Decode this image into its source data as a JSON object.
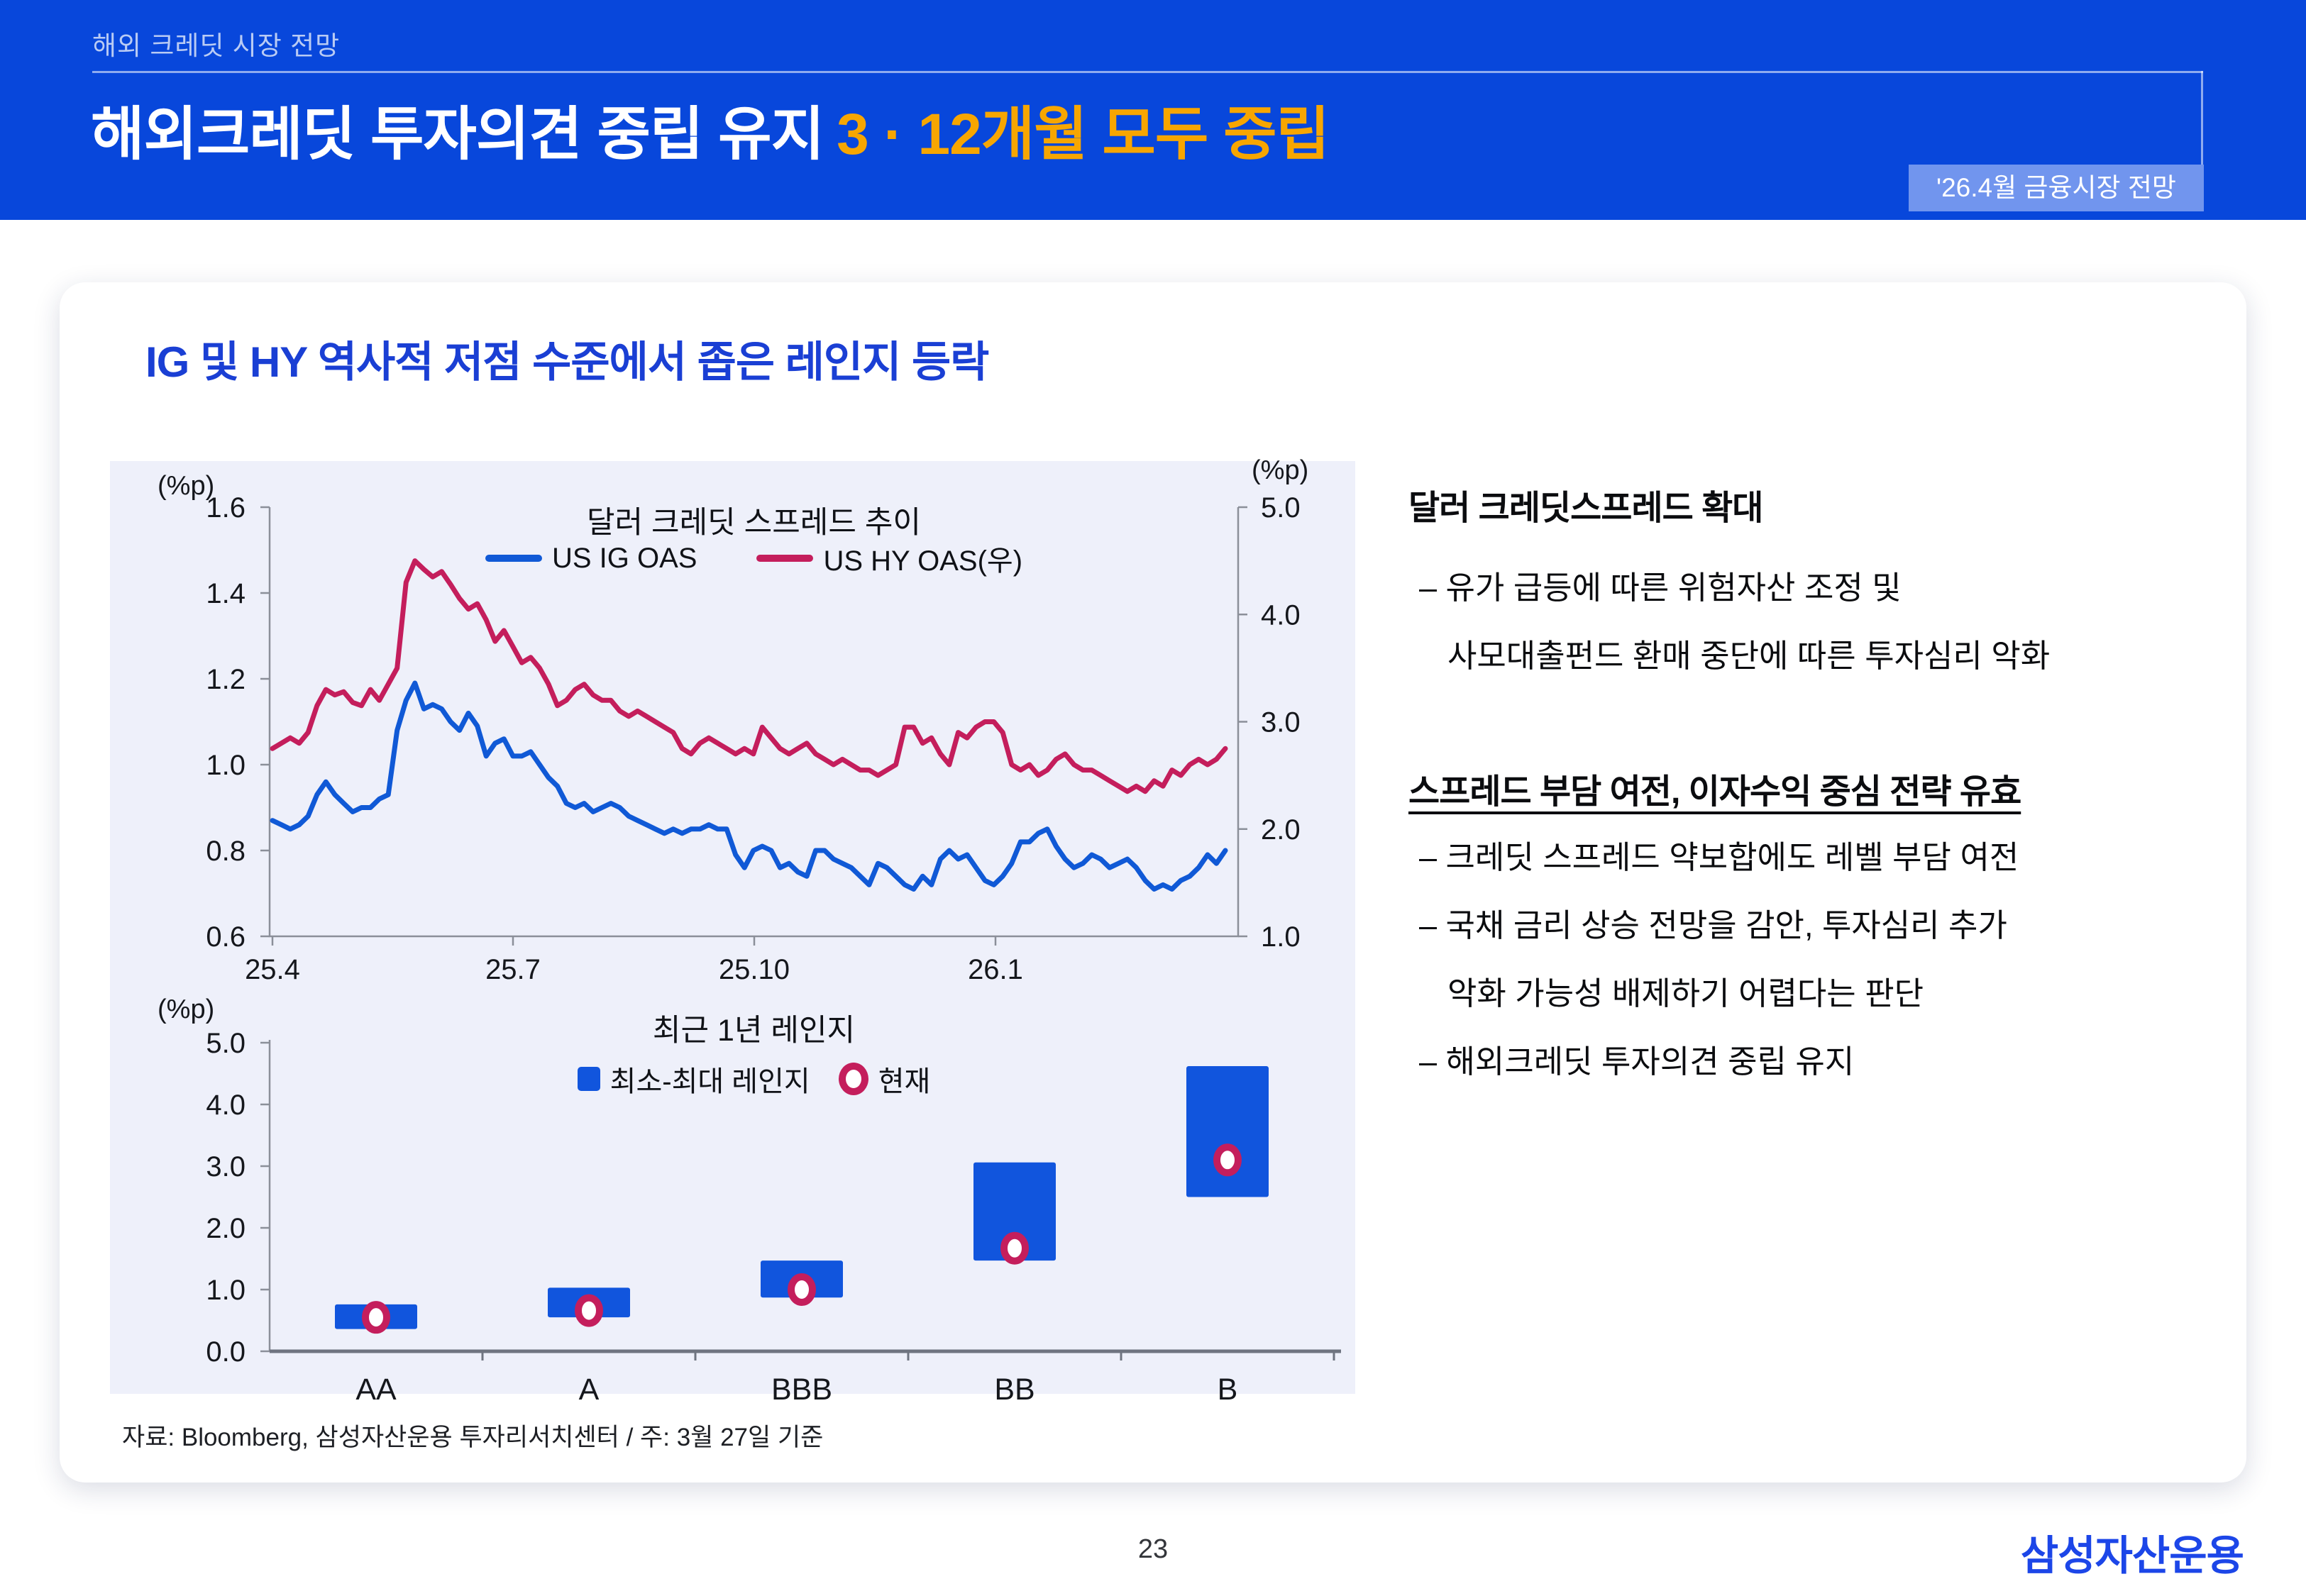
{
  "header": {
    "eyebrow": "해외 크레딧 시장 전망",
    "title_main": "해외크레딧 투자의견 중립 유지",
    "title_accent": "3 · 12개월 모두 중립",
    "badge": "'26.4월 금융시장 전망",
    "bg_color": "#0847DB",
    "accent_color": "#F7A600",
    "badge_bg": "#7195EE"
  },
  "card": {
    "title": "IG 및 HY 역사적 저점 수준에서 좁은 레인지 등락",
    "title_color": "#1A3FD4"
  },
  "right_column": {
    "block1": {
      "heading": "달러 크레딧스프레드 확대",
      "bullet1": "– 유가 급등에 따른 위험자산 조정 및",
      "bullet2": "사모대출펀드 환매 중단에 따른 투자심리 악화"
    },
    "block2": {
      "heading": "스프레드 부담 여전, 이자수익 중심 전략 유효",
      "bullet1": "– 크레딧 스프레드 약보합에도 레벨 부담 여전",
      "bullet2": "– 국채 금리 상승 전망을 감안, 투자심리 추가",
      "bullet3": "악화 가능성 배제하기 어렵다는 판단",
      "bullet4": "– 해외크레딧 투자의견 중립 유지"
    }
  },
  "footnote": "자료: Bloomberg, 삼성자산운용 투자리서치센터 / 주: 3월 27일 기준",
  "page_number": "23",
  "logo": "삼성자산운용",
  "logo_color": "#1C46E8",
  "chart_data": [
    {
      "type": "line",
      "title": "달러 크레딧 스프레드 추이",
      "unit_left": "(%p)",
      "unit_right": "(%p)",
      "x_ticks": [
        "25.4",
        "25.7",
        "25.10",
        "26.1"
      ],
      "left_axis": {
        "min": 0.6,
        "max": 1.6,
        "ticks": [
          "1.6",
          "1.4",
          "1.2",
          "1.0",
          "0.8",
          "0.6"
        ]
      },
      "right_axis": {
        "min": 1.0,
        "max": 5.0,
        "ticks": [
          "5.0",
          "4.0",
          "3.0",
          "2.0",
          "1.0"
        ]
      },
      "legend_position": "top",
      "grid": false,
      "series": [
        {
          "name": "US IG OAS",
          "axis": "left",
          "color": "#1059D6",
          "values": [
            0.87,
            0.86,
            0.85,
            0.86,
            0.88,
            0.93,
            0.96,
            0.93,
            0.91,
            0.89,
            0.9,
            0.9,
            0.92,
            0.93,
            1.08,
            1.15,
            1.19,
            1.13,
            1.14,
            1.13,
            1.1,
            1.08,
            1.12,
            1.09,
            1.02,
            1.05,
            1.06,
            1.02,
            1.02,
            1.03,
            1.0,
            0.97,
            0.95,
            0.91,
            0.9,
            0.91,
            0.89,
            0.9,
            0.91,
            0.9,
            0.88,
            0.87,
            0.86,
            0.85,
            0.84,
            0.85,
            0.84,
            0.85,
            0.85,
            0.86,
            0.85,
            0.85,
            0.79,
            0.76,
            0.8,
            0.81,
            0.8,
            0.76,
            0.77,
            0.75,
            0.74,
            0.8,
            0.8,
            0.78,
            0.77,
            0.76,
            0.74,
            0.72,
            0.77,
            0.76,
            0.74,
            0.72,
            0.71,
            0.74,
            0.72,
            0.78,
            0.8,
            0.78,
            0.79,
            0.76,
            0.73,
            0.72,
            0.74,
            0.77,
            0.82,
            0.82,
            0.84,
            0.85,
            0.81,
            0.78,
            0.76,
            0.77,
            0.79,
            0.78,
            0.76,
            0.77,
            0.78,
            0.76,
            0.73,
            0.71,
            0.72,
            0.71,
            0.73,
            0.74,
            0.76,
            0.79,
            0.77,
            0.8
          ]
        },
        {
          "name": "US HY OAS(우)",
          "axis": "right",
          "color": "#C41E5C",
          "values": [
            2.75,
            2.8,
            2.85,
            2.8,
            2.9,
            3.15,
            3.3,
            3.25,
            3.28,
            3.18,
            3.15,
            3.3,
            3.2,
            3.35,
            3.5,
            4.3,
            4.5,
            4.42,
            4.35,
            4.4,
            4.28,
            4.15,
            4.05,
            4.1,
            3.95,
            3.75,
            3.85,
            3.7,
            3.55,
            3.6,
            3.5,
            3.35,
            3.15,
            3.2,
            3.3,
            3.35,
            3.25,
            3.2,
            3.2,
            3.1,
            3.05,
            3.1,
            3.05,
            3.0,
            2.95,
            2.9,
            2.75,
            2.7,
            2.8,
            2.85,
            2.8,
            2.75,
            2.7,
            2.75,
            2.7,
            2.95,
            2.85,
            2.75,
            2.7,
            2.75,
            2.8,
            2.7,
            2.65,
            2.6,
            2.65,
            2.6,
            2.55,
            2.55,
            2.5,
            2.55,
            2.6,
            2.95,
            2.95,
            2.8,
            2.85,
            2.7,
            2.6,
            2.9,
            2.85,
            2.95,
            3.0,
            3.0,
            2.9,
            2.6,
            2.55,
            2.6,
            2.5,
            2.55,
            2.65,
            2.7,
            2.6,
            2.55,
            2.55,
            2.5,
            2.45,
            2.4,
            2.35,
            2.4,
            2.35,
            2.45,
            2.4,
            2.55,
            2.5,
            2.6,
            2.65,
            2.6,
            2.65,
            2.75
          ]
        }
      ]
    },
    {
      "type": "range-bar",
      "title": "최근 1년 레인지",
      "unit": "(%p)",
      "legend_range_label": "최소-최대 레인지",
      "legend_current_label": "현재",
      "categories": [
        "AA",
        "A",
        "BBB",
        "BB",
        "B"
      ],
      "y_axis": {
        "min": 0,
        "max": 5,
        "ticks": [
          "5.0",
          "4.0",
          "3.0",
          "2.0",
          "1.0",
          "0.0"
        ]
      },
      "ranges": [
        [
          0.36,
          0.76
        ],
        [
          0.55,
          1.03
        ],
        [
          0.87,
          1.47
        ],
        [
          1.47,
          3.06
        ],
        [
          2.5,
          4.62
        ]
      ],
      "current": [
        0.55,
        0.66,
        1.0,
        1.67,
        3.1
      ],
      "bar_color": "#1155DD",
      "marker_color": "#C41E5C",
      "grid": false
    }
  ]
}
